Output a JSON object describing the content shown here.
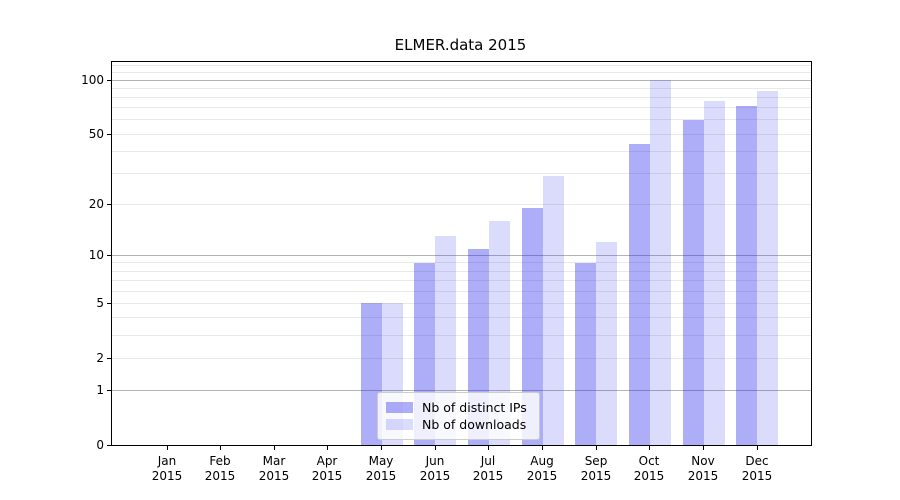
{
  "figure": {
    "title": "ELMER.data 2015"
  },
  "chart_data": {
    "type": "bar",
    "title": "ELMER.data 2015",
    "categories": [
      "Jan",
      "Feb",
      "Mar",
      "Apr",
      "May",
      "Jun",
      "Jul",
      "Aug",
      "Sep",
      "Oct",
      "Nov",
      "Dec"
    ],
    "category_year": "2015",
    "series": [
      {
        "name": "Nb of distinct IPs",
        "key": "distinct-ips",
        "color": "rgba(30,30,235,0.36)",
        "values": [
          0,
          0,
          0,
          0,
          5,
          9,
          11,
          19,
          9,
          44,
          60,
          72
        ]
      },
      {
        "name": "Nb of downloads",
        "key": "downloads",
        "color": "rgba(30,30,235,0.16)",
        "values": [
          0,
          0,
          0,
          0,
          5,
          13,
          16,
          29,
          12,
          100,
          77,
          87
        ]
      }
    ],
    "yscale": "log1p",
    "ylim": [
      0,
      126
    ],
    "y_tick_values": [
      0,
      1,
      2,
      5,
      10,
      20,
      50,
      100
    ],
    "y_tick_labels": [
      "0",
      "1",
      "2",
      "5",
      "10",
      "20",
      "50",
      "100"
    ],
    "grid": {
      "major_values": [
        1,
        10,
        100
      ],
      "minor_values": [
        2,
        3,
        4,
        5,
        6,
        7,
        8,
        9,
        20,
        30,
        40,
        50,
        60,
        70,
        80,
        90,
        110,
        120
      ],
      "major_color": "#b4b4b4",
      "minor_color": "#e9e9e9"
    },
    "legend": {
      "position": "lower center"
    },
    "axis_color": "#000000",
    "text_color": "#000000"
  }
}
